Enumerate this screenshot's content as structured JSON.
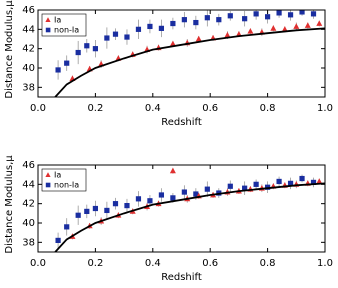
{
  "chart_data": [
    {
      "type": "scatter",
      "xlabel": "Redshift",
      "ylabel": "Distance Modulus,μ",
      "xlim": [
        0,
        1
      ],
      "ylim": [
        37,
        46
      ],
      "xticks": [
        {
          "value": 0,
          "label": "0.0"
        },
        {
          "value": 0.2,
          "label": "0.2"
        },
        {
          "value": 0.4,
          "label": "0.4"
        },
        {
          "value": 0.6,
          "label": "0.6"
        },
        {
          "value": 0.8,
          "label": "0.8"
        },
        {
          "value": 1,
          "label": "1.0"
        }
      ],
      "yticks": [
        38,
        40,
        42,
        44,
        46
      ],
      "legend": "upper left",
      "series": [
        {
          "name": "non-Ia",
          "color": "#1a2ea0",
          "marker": "square",
          "x": [
            0.07,
            0.1,
            0.14,
            0.17,
            0.2,
            0.24,
            0.27,
            0.31,
            0.35,
            0.39,
            0.43,
            0.47,
            0.51,
            0.55,
            0.59,
            0.63,
            0.67,
            0.72,
            0.76,
            0.8,
            0.84,
            0.88,
            0.92,
            0.96
          ],
          "values": [
            39.8,
            40.5,
            41.6,
            42.3,
            42.0,
            43.1,
            43.5,
            43.2,
            44.0,
            44.3,
            44.1,
            44.6,
            45.0,
            44.7,
            45.2,
            45.0,
            45.4,
            45.1,
            45.6,
            45.3,
            45.7,
            45.5,
            45.8,
            45.6
          ],
          "errors": [
            1.0,
            0.8,
            1.2,
            0.7,
            0.9,
            1.1,
            0.6,
            0.8,
            1.0,
            0.7,
            0.9,
            0.6,
            0.8,
            0.7,
            0.9,
            0.6,
            0.5,
            0.8,
            0.6,
            0.7,
            0.5,
            0.6,
            0.4,
            0.5
          ]
        },
        {
          "name": "Ia",
          "color": "#e03030",
          "marker": "triangle",
          "x": [
            0.12,
            0.18,
            0.22,
            0.28,
            0.33,
            0.38,
            0.42,
            0.47,
            0.52,
            0.56,
            0.61,
            0.66,
            0.7,
            0.74,
            0.78,
            0.82,
            0.86,
            0.9,
            0.94,
            0.98
          ],
          "values": [
            38.9,
            39.9,
            40.4,
            41.0,
            41.4,
            41.9,
            42.1,
            42.5,
            42.6,
            43.0,
            43.1,
            43.4,
            43.5,
            43.8,
            43.7,
            44.1,
            44.0,
            44.3,
            44.4,
            44.6
          ],
          "errors": [
            0.3,
            0.3,
            0.4,
            0.3,
            0.3,
            0.4,
            0.3,
            0.3,
            0.4,
            0.3,
            0.3,
            0.4,
            0.3,
            0.3,
            0.4,
            0.3,
            0.3,
            0.4,
            0.3,
            0.3
          ]
        }
      ],
      "curve": {
        "color": "#000000",
        "x": [
          0.06,
          0.1,
          0.15,
          0.2,
          0.3,
          0.4,
          0.5,
          0.6,
          0.7,
          0.8,
          0.9,
          1.0
        ],
        "values": [
          37.0,
          38.3,
          39.2,
          40.0,
          41.0,
          41.9,
          42.4,
          42.9,
          43.3,
          43.6,
          43.9,
          44.1
        ]
      }
    },
    {
      "type": "scatter",
      "xlabel": "Redshift",
      "ylabel": "Distance Modulus,μ",
      "xlim": [
        0,
        1
      ],
      "ylim": [
        37,
        46
      ],
      "xticks": [
        {
          "value": 0,
          "label": "0.0"
        },
        {
          "value": 0.2,
          "label": "0.2"
        },
        {
          "value": 0.4,
          "label": "0.4"
        },
        {
          "value": 0.6,
          "label": "0.6"
        },
        {
          "value": 0.8,
          "label": "0.8"
        },
        {
          "value": 1,
          "label": "1.0"
        }
      ],
      "yticks": [
        38,
        40,
        42,
        44,
        46
      ],
      "legend": "upper left",
      "series": [
        {
          "name": "non-Ia",
          "color": "#1a2ea0",
          "marker": "square",
          "x": [
            0.07,
            0.1,
            0.14,
            0.17,
            0.2,
            0.24,
            0.27,
            0.31,
            0.35,
            0.39,
            0.43,
            0.47,
            0.51,
            0.55,
            0.59,
            0.63,
            0.67,
            0.72,
            0.76,
            0.8,
            0.84,
            0.88,
            0.92,
            0.96
          ],
          "values": [
            38.2,
            39.6,
            40.8,
            41.2,
            41.5,
            41.3,
            42.0,
            41.8,
            42.5,
            42.3,
            42.9,
            42.6,
            43.2,
            43.0,
            43.5,
            43.1,
            43.8,
            43.6,
            44.0,
            43.7,
            44.3,
            44.1,
            44.6,
            44.2
          ],
          "errors": [
            0.8,
            0.9,
            1.0,
            0.7,
            0.8,
            0.9,
            0.6,
            0.7,
            0.8,
            0.6,
            0.7,
            0.5,
            0.7,
            0.6,
            0.8,
            0.5,
            0.6,
            0.7,
            0.5,
            0.6,
            0.5,
            0.6,
            0.4,
            0.5
          ]
        },
        {
          "name": "Ia",
          "color": "#e03030",
          "marker": "triangle",
          "x": [
            0.12,
            0.18,
            0.22,
            0.28,
            0.33,
            0.38,
            0.42,
            0.47,
            0.52,
            0.56,
            0.61,
            0.66,
            0.7,
            0.74,
            0.78,
            0.82,
            0.86,
            0.9,
            0.94,
            0.98
          ],
          "values": [
            38.6,
            39.7,
            40.2,
            40.8,
            41.2,
            41.7,
            42.0,
            45.4,
            42.5,
            42.8,
            42.9,
            43.2,
            43.3,
            43.5,
            43.6,
            43.8,
            43.9,
            44.0,
            44.1,
            44.3
          ],
          "errors": [
            0.3,
            0.3,
            0.4,
            0.3,
            0.3,
            0.4,
            0.3,
            0.3,
            0.4,
            0.3,
            0.3,
            0.4,
            0.3,
            0.3,
            0.4,
            0.3,
            0.3,
            0.4,
            0.3,
            0.3
          ]
        }
      ],
      "curve": {
        "color": "#000000",
        "x": [
          0.06,
          0.1,
          0.15,
          0.2,
          0.3,
          0.4,
          0.5,
          0.6,
          0.7,
          0.8,
          0.9,
          1.0
        ],
        "values": [
          37.0,
          38.3,
          39.2,
          40.0,
          41.0,
          41.9,
          42.4,
          42.9,
          43.3,
          43.6,
          43.9,
          44.1
        ]
      }
    }
  ]
}
